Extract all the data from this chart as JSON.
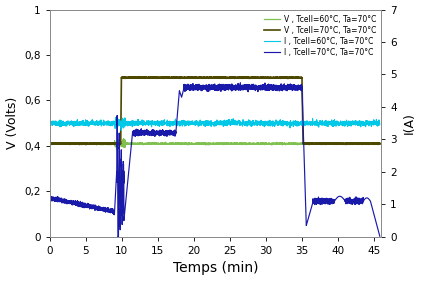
{
  "title": "",
  "xlabel": "Temps (min)",
  "ylabel_left": "V (Volts)",
  "ylabel_right": "I(A)",
  "xlim": [
    0,
    46
  ],
  "ylim_left": [
    0,
    1
  ],
  "ylim_right": [
    0,
    7
  ],
  "yticks_left": [
    0,
    0.2,
    0.4,
    0.6,
    0.8,
    1.0
  ],
  "yticks_right": [
    0,
    1,
    2,
    3,
    4,
    5,
    6,
    7
  ],
  "xticks": [
    0,
    5,
    10,
    15,
    20,
    25,
    30,
    35,
    40,
    45
  ],
  "legend_labels": [
    "V , Tcell=60°C, Ta=70°C",
    "V , Tcell=70°C, Ta=70°C",
    "I , Tcell=60°C, Ta=70°C",
    "I , Tcell=70°C, Ta=70°C"
  ],
  "colors": {
    "V60": "#7fc050",
    "V70": "#4d4800",
    "I60": "#00c8e6",
    "I70": "#1a1aaa"
  },
  "background": "#ffffff",
  "figsize": [
    4.21,
    2.81
  ],
  "dpi": 100
}
